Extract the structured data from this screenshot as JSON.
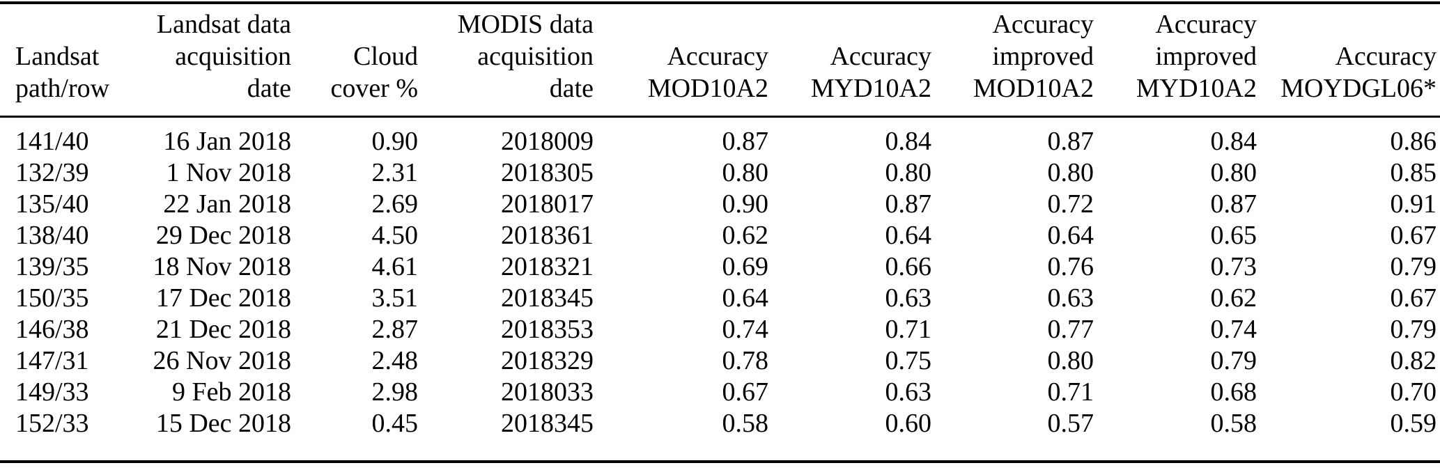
{
  "colors": {
    "background": "#ffffff",
    "text": "#000000",
    "rule": "#000000"
  },
  "table": {
    "columns": [
      {
        "id": "landsat-path-row",
        "align": "left",
        "lines": [
          "Landsat",
          "path/row"
        ]
      },
      {
        "id": "landsat-acquisition-date",
        "align": "right",
        "lines": [
          "Landsat data",
          "acquisition",
          "date"
        ]
      },
      {
        "id": "cloud-cover-percent",
        "align": "right",
        "lines": [
          "Cloud",
          "cover %"
        ]
      },
      {
        "id": "modis-acquisition-date",
        "align": "right",
        "lines": [
          "MODIS data",
          "acquisition",
          "date"
        ]
      },
      {
        "id": "accuracy-mod10a2",
        "align": "right",
        "lines": [
          "Accuracy",
          "MOD10A2"
        ]
      },
      {
        "id": "accuracy-myd10a2",
        "align": "right",
        "lines": [
          "Accuracy",
          "MYD10A2"
        ]
      },
      {
        "id": "accuracy-improved-mod10a2",
        "align": "right",
        "lines": [
          "Accuracy",
          "improved",
          "MOD10A2"
        ]
      },
      {
        "id": "accuracy-improved-myd10a2",
        "align": "right",
        "lines": [
          "Accuracy",
          "improved",
          "MYD10A2"
        ]
      },
      {
        "id": "accuracy-moydgl06",
        "align": "right",
        "lines": [
          "Accuracy",
          "MOYDGL06*"
        ]
      }
    ],
    "rows": [
      [
        "141/40",
        "16 Jan 2018",
        "0.90",
        "2018009",
        "0.87",
        "0.84",
        "0.87",
        "0.84",
        "0.86"
      ],
      [
        "132/39",
        "1 Nov 2018",
        "2.31",
        "2018305",
        "0.80",
        "0.80",
        "0.80",
        "0.80",
        "0.85"
      ],
      [
        "135/40",
        "22 Jan 2018",
        "2.69",
        "2018017",
        "0.90",
        "0.87",
        "0.72",
        "0.87",
        "0.91"
      ],
      [
        "138/40",
        "29 Dec 2018",
        "4.50",
        "2018361",
        "0.62",
        "0.64",
        "0.64",
        "0.65",
        "0.67"
      ],
      [
        "139/35",
        "18 Nov 2018",
        "4.61",
        "2018321",
        "0.69",
        "0.66",
        "0.76",
        "0.73",
        "0.79"
      ],
      [
        "150/35",
        "17 Dec 2018",
        "3.51",
        "2018345",
        "0.64",
        "0.63",
        "0.63",
        "0.62",
        "0.67"
      ],
      [
        "146/38",
        "21 Dec 2018",
        "2.87",
        "2018353",
        "0.74",
        "0.71",
        "0.77",
        "0.74",
        "0.79"
      ],
      [
        "147/31",
        "26 Nov 2018",
        "2.48",
        "2018329",
        "0.78",
        "0.75",
        "0.80",
        "0.79",
        "0.82"
      ],
      [
        "149/33",
        "9 Feb 2018",
        "2.98",
        "2018033",
        "0.67",
        "0.63",
        "0.71",
        "0.68",
        "0.70"
      ],
      [
        "152/33",
        "15 Dec 2018",
        "0.45",
        "2018345",
        "0.58",
        "0.60",
        "0.57",
        "0.58",
        "0.59"
      ]
    ]
  }
}
